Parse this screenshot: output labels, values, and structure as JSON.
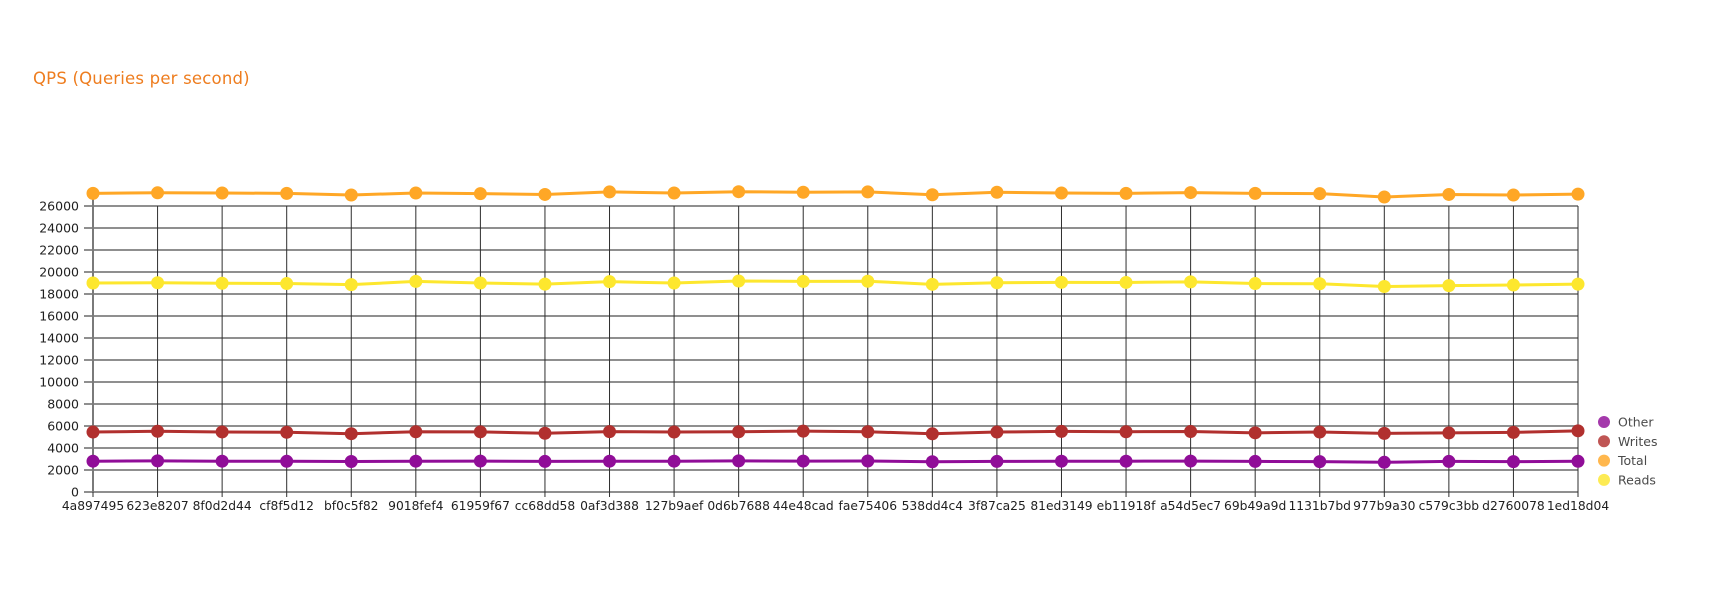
{
  "title": {
    "text": "QPS (Queries per second)",
    "color": "#ee7d1f"
  },
  "chart_data": {
    "type": "line",
    "title": "QPS (Queries per second)",
    "xlabel": "",
    "ylabel": "",
    "grid": true,
    "ylim": [
      0,
      28000
    ],
    "yticks": [
      0,
      2000,
      4000,
      6000,
      8000,
      10000,
      12000,
      14000,
      16000,
      18000,
      20000,
      22000,
      24000,
      26000
    ],
    "categories": [
      "4a897495",
      "623e8207",
      "8f0d2d44",
      "cf8f5d12",
      "bf0c5f82",
      "9018fef4",
      "61959f67",
      "cc68dd58",
      "0af3d388",
      "127b9aef",
      "0d6b7688",
      "44e48cad",
      "fae75406",
      "538dd4c4",
      "3f87ca25",
      "81ed3149",
      "eb11918f",
      "a54d5ec7",
      "69b49a9d",
      "1131b7bd",
      "977b9a30",
      "c579c3bb",
      "d2760078",
      "1ed18d04"
    ],
    "series": [
      {
        "name": "Total",
        "color": "#ffa726",
        "values": [
          27150,
          27200,
          27180,
          27150,
          27000,
          27180,
          27120,
          27050,
          27280,
          27180,
          27300,
          27250,
          27280,
          27020,
          27250,
          27180,
          27150,
          27220,
          27150,
          27120,
          26820,
          27050,
          27000,
          27080
        ]
      },
      {
        "name": "Reads",
        "color": "#fde72e",
        "values": [
          19000,
          19020,
          18980,
          18950,
          18850,
          19150,
          19000,
          18900,
          19120,
          19000,
          19180,
          19150,
          19160,
          18880,
          19020,
          19060,
          19050,
          19100,
          18950,
          18930,
          18680,
          18760,
          18820,
          18900
        ]
      },
      {
        "name": "Writes",
        "color": "#b1302e",
        "values": [
          5450,
          5520,
          5460,
          5430,
          5300,
          5480,
          5470,
          5340,
          5490,
          5450,
          5480,
          5530,
          5480,
          5290,
          5450,
          5510,
          5480,
          5500,
          5380,
          5450,
          5330,
          5370,
          5420,
          5560
        ]
      },
      {
        "name": "Other",
        "color": "#900d98",
        "values": [
          2800,
          2830,
          2800,
          2790,
          2770,
          2800,
          2810,
          2780,
          2800,
          2800,
          2830,
          2810,
          2820,
          2750,
          2780,
          2800,
          2800,
          2810,
          2780,
          2760,
          2700,
          2780,
          2760,
          2790
        ]
      }
    ],
    "legend": {
      "position": "right-bottom",
      "entries": [
        "Other",
        "Writes",
        "Total",
        "Reads"
      ],
      "text_color": "#4a4a4a"
    },
    "style": {
      "h_grid_color": "#8f8f8f",
      "v_grid_color": "#2e2e2e",
      "axis_color": "#7a7a7a",
      "tick_label_color": "#1f1f1f"
    }
  }
}
